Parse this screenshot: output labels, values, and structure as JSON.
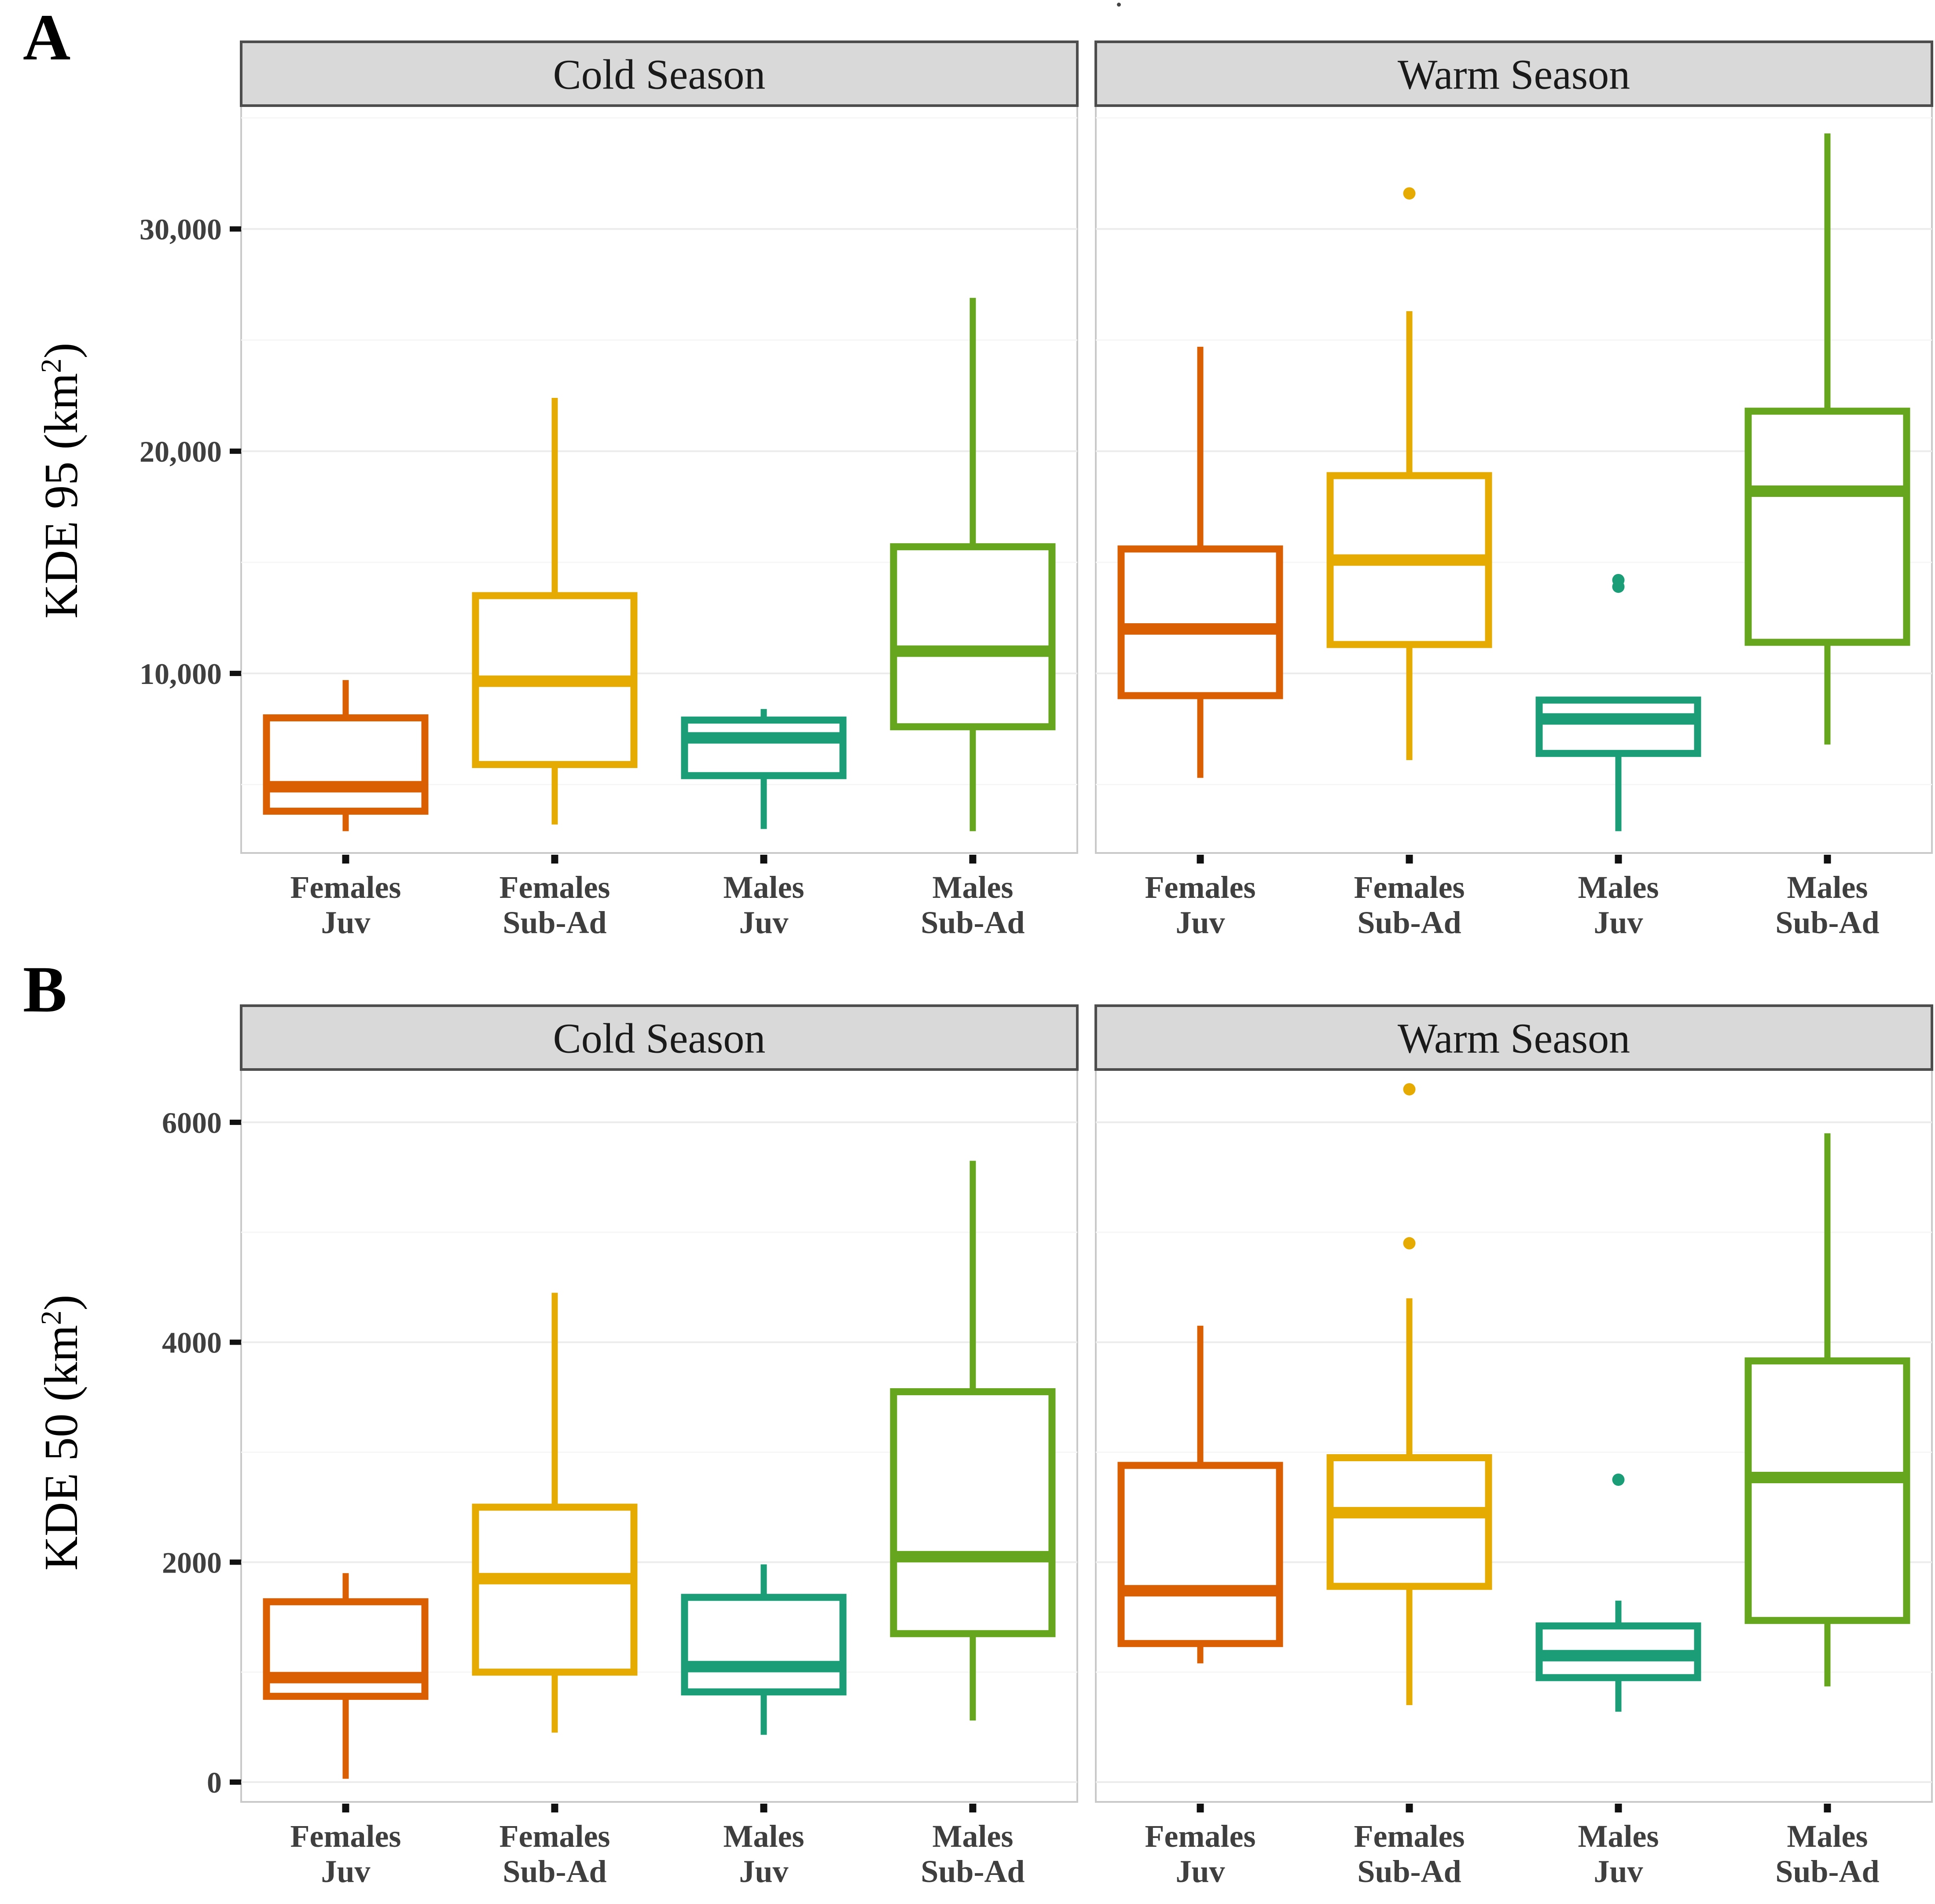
{
  "figure": {
    "stray_mark": "·",
    "colors": {
      "females_juv": "#D95F02",
      "females_subad": "#E6AB02",
      "males_juv": "#1B9E77",
      "males_subad": "#66A61E",
      "strip_fill": "#D9D9D9",
      "strip_border": "#4D4D4D",
      "panel_border": "#C9C9C9",
      "grid_major": "#ECECEC",
      "grid_minor": "#F6F6F6",
      "tick_text": "#3F3F3F",
      "strip_text": "#1A1A1A"
    }
  },
  "chart_data": [
    {
      "type": "box",
      "panel_letter": "A",
      "ylabel_prefix": "KDE 95 (km",
      "ylabel_sup": "2",
      "ylabel_suffix": ")",
      "ylim": [
        1920,
        35550
      ],
      "yticks": [
        {
          "value": 10000,
          "label": "10,000"
        },
        {
          "value": 20000,
          "label": "20,000"
        },
        {
          "value": 30000,
          "label": "30,000"
        }
      ],
      "yminor": [
        5000,
        15000,
        25000,
        35000
      ],
      "legend_position": "none",
      "grid": true,
      "facets": [
        {
          "label": "Cold Season",
          "groups": [
            {
              "name": "Females Juv",
              "label_line1": "Females",
              "label_line2": "Juv",
              "color_key": "females_juv",
              "whisker_low": 2900,
              "q1": 3800,
              "median": 4900,
              "q3": 8000,
              "whisker_high": 9700,
              "outliers": []
            },
            {
              "name": "Females Sub-Ad",
              "label_line1": "Females",
              "label_line2": "Sub-Ad",
              "color_key": "females_subad",
              "whisker_low": 3200,
              "q1": 5900,
              "median": 9650,
              "q3": 13500,
              "whisker_high": 22400,
              "outliers": []
            },
            {
              "name": "Males Juv",
              "label_line1": "Males",
              "label_line2": "Juv",
              "color_key": "males_juv",
              "whisker_low": 3000,
              "q1": 5400,
              "median": 7100,
              "q3": 7900,
              "whisker_high": 8400,
              "outliers": []
            },
            {
              "name": "Males Sub-Ad",
              "label_line1": "Males",
              "label_line2": "Sub-Ad",
              "color_key": "males_subad",
              "whisker_low": 2900,
              "q1": 7600,
              "median": 11000,
              "q3": 15700,
              "whisker_high": 26900,
              "outliers": []
            }
          ]
        },
        {
          "label": "Warm Season",
          "groups": [
            {
              "name": "Females Juv",
              "label_line1": "Females",
              "label_line2": "Juv",
              "color_key": "females_juv",
              "whisker_low": 5300,
              "q1": 9000,
              "median": 12000,
              "q3": 15600,
              "whisker_high": 24700,
              "outliers": []
            },
            {
              "name": "Females Sub-Ad",
              "label_line1": "Females",
              "label_line2": "Sub-Ad",
              "color_key": "females_subad",
              "whisker_low": 6100,
              "q1": 11300,
              "median": 15100,
              "q3": 18900,
              "whisker_high": 26300,
              "outliers": [
                31600
              ]
            },
            {
              "name": "Males Juv",
              "label_line1": "Males",
              "label_line2": "Juv",
              "color_key": "males_juv",
              "whisker_low": 2900,
              "q1": 6400,
              "median": 7950,
              "q3": 8800,
              "whisker_high": 8800,
              "outliers": [
                13900,
                14200
              ]
            },
            {
              "name": "Males Sub-Ad",
              "label_line1": "Males",
              "label_line2": "Sub-Ad",
              "color_key": "males_subad",
              "whisker_low": 6800,
              "q1": 11400,
              "median": 18200,
              "q3": 21800,
              "whisker_high": 34300,
              "outliers": []
            }
          ]
        }
      ]
    },
    {
      "type": "box",
      "panel_letter": "B",
      "ylabel_prefix": "KDE 50 (km",
      "ylabel_sup": "2",
      "ylabel_suffix": ")",
      "ylim": [
        -180,
        6480
      ],
      "yticks": [
        {
          "value": 0,
          "label": "0"
        },
        {
          "value": 2000,
          "label": "2000"
        },
        {
          "value": 4000,
          "label": "4000"
        },
        {
          "value": 6000,
          "label": "6000"
        }
      ],
      "yminor": [
        1000,
        3000,
        5000
      ],
      "legend_position": "none",
      "grid": true,
      "facets": [
        {
          "label": "Cold Season",
          "groups": [
            {
              "name": "Females Juv",
              "label_line1": "Females",
              "label_line2": "Juv",
              "color_key": "females_juv",
              "whisker_low": 30,
              "q1": 780,
              "median": 950,
              "q3": 1640,
              "whisker_high": 1900,
              "outliers": []
            },
            {
              "name": "Females Sub-Ad",
              "label_line1": "Females",
              "label_line2": "Sub-Ad",
              "color_key": "females_subad",
              "whisker_low": 450,
              "q1": 1000,
              "median": 1850,
              "q3": 2500,
              "whisker_high": 4450,
              "outliers": []
            },
            {
              "name": "Males Juv",
              "label_line1": "Males",
              "label_line2": "Juv",
              "color_key": "males_juv",
              "whisker_low": 430,
              "q1": 820,
              "median": 1050,
              "q3": 1680,
              "whisker_high": 1980,
              "outliers": []
            },
            {
              "name": "Males Sub-Ad",
              "label_line1": "Males",
              "label_line2": "Sub-Ad",
              "color_key": "males_subad",
              "whisker_low": 560,
              "q1": 1350,
              "median": 2050,
              "q3": 3550,
              "whisker_high": 5650,
              "outliers": []
            }
          ]
        },
        {
          "label": "Warm Season",
          "groups": [
            {
              "name": "Females Juv",
              "label_line1": "Females",
              "label_line2": "Juv",
              "color_key": "females_juv",
              "whisker_low": 1080,
              "q1": 1260,
              "median": 1740,
              "q3": 2880,
              "whisker_high": 4150,
              "outliers": []
            },
            {
              "name": "Females Sub-Ad",
              "label_line1": "Females",
              "label_line2": "Sub-Ad",
              "color_key": "females_subad",
              "whisker_low": 700,
              "q1": 1780,
              "median": 2450,
              "q3": 2950,
              "whisker_high": 4400,
              "outliers": [
                4900,
                6300
              ]
            },
            {
              "name": "Males Juv",
              "label_line1": "Males",
              "label_line2": "Juv",
              "color_key": "males_juv",
              "whisker_low": 640,
              "q1": 950,
              "median": 1150,
              "q3": 1420,
              "whisker_high": 1650,
              "outliers": [
                2750
              ]
            },
            {
              "name": "Males Sub-Ad",
              "label_line1": "Males",
              "label_line2": "Sub-Ad",
              "color_key": "males_subad",
              "whisker_low": 870,
              "q1": 1470,
              "median": 2770,
              "q3": 3830,
              "whisker_high": 5900,
              "outliers": []
            }
          ]
        }
      ]
    }
  ]
}
